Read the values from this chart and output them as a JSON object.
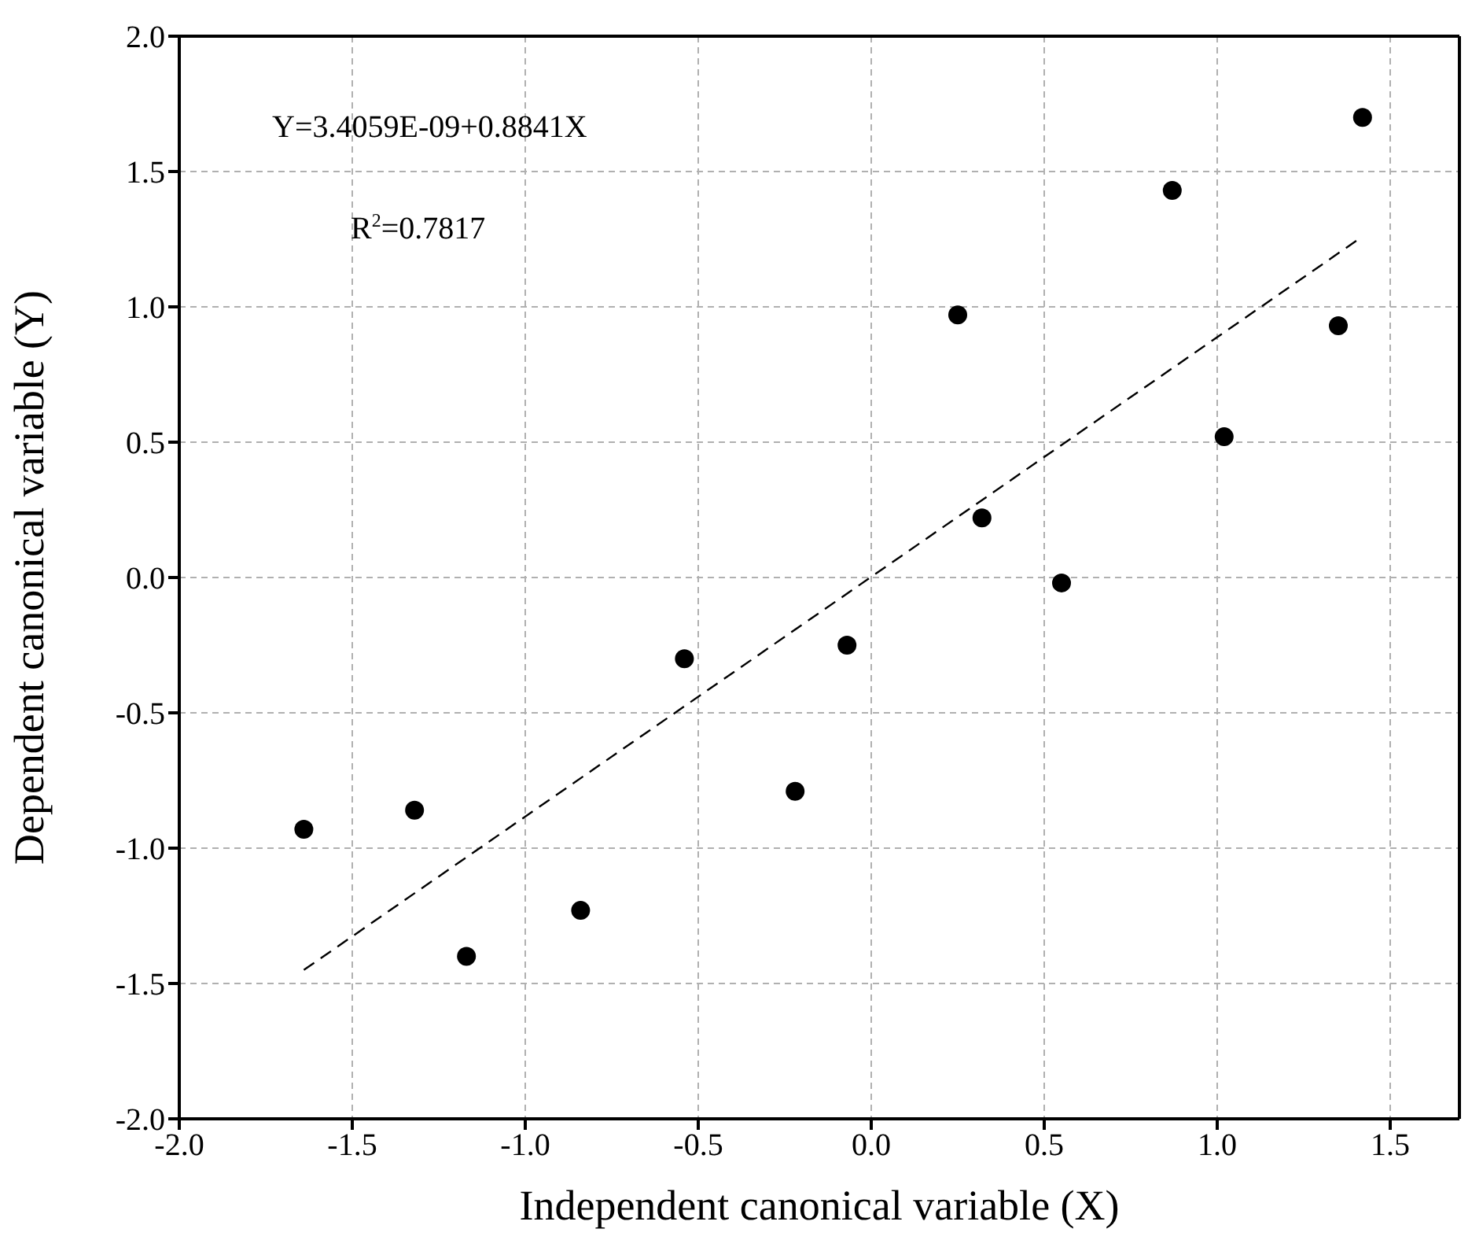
{
  "chart_data": {
    "type": "scatter",
    "xlabel": "Independent canonical variable (X)",
    "ylabel": "Dependent canonical variable (Y)",
    "annotations": [
      "Y=3.4059E-09+0.8841X",
      "R$^{2}$=0.7817"
    ],
    "series": [
      {
        "color": "#000000",
        "marker": "circle",
        "x": [
          -1.64,
          -1.32,
          -1.17,
          -0.84,
          -0.54,
          -0.22,
          -0.07,
          0.25,
          0.32,
          0.55,
          0.87,
          1.02,
          1.35,
          1.42
        ],
        "values": [
          -0.93,
          -0.86,
          -1.4,
          -1.23,
          -0.3,
          -0.79,
          -0.25,
          0.97,
          0.22,
          -0.02,
          1.43,
          0.52,
          0.93,
          1.7
        ]
      },
      {
        "type": "line",
        "color": "#000000",
        "line_style": "dashed",
        "marker": "none",
        "x": [
          -1.64,
          1.42
        ],
        "values": [
          -1.45,
          1.26
        ]
      }
    ],
    "xlim": [
      -2.0,
      1.7
    ],
    "xticks": [
      {
        "value": -2,
        "label": "-2.0"
      },
      {
        "value": -1.5,
        "label": "-1.5"
      },
      {
        "value": -1,
        "label": "-1.0"
      },
      {
        "value": -0.5,
        "label": "-0.5"
      },
      {
        "value": 0,
        "label": "0.0"
      },
      {
        "value": 0.5,
        "label": "0.5"
      },
      {
        "value": 1,
        "label": "1.0"
      },
      {
        "value": 1.5,
        "label": "1.5"
      }
    ],
    "ylim": [
      -2.0,
      2.0
    ],
    "yticks": [
      {
        "value": -2,
        "label": "-2.0"
      },
      {
        "value": -1.5,
        "label": "-1.5"
      },
      {
        "value": -1,
        "label": "-1.0"
      },
      {
        "value": -0.5,
        "label": "-0.5"
      },
      {
        "value": 0,
        "label": "0.0"
      },
      {
        "value": 0.5,
        "label": "0.5"
      },
      {
        "value": 1,
        "label": "1.0"
      },
      {
        "value": 1.5,
        "label": "1.5"
      },
      {
        "value": 2,
        "label": "2.0"
      }
    ],
    "grid": true
  }
}
